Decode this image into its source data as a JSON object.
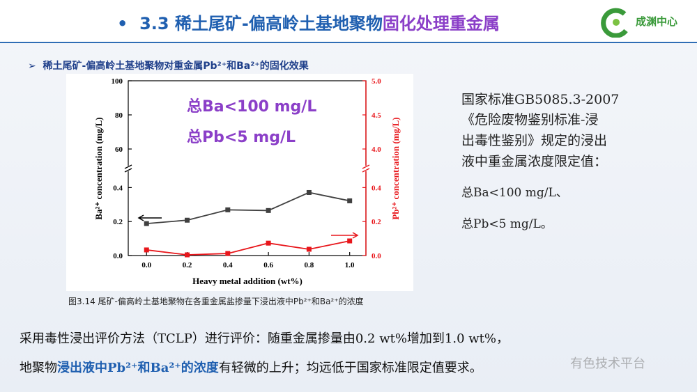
{
  "slide": {
    "title_parts": [
      "3.3  稀土尾矿-偏高岭土基地聚物",
      "固化处理重金属"
    ],
    "logo": "成渊中心",
    "subheading": "稀土尾矿-偏高岭土基地聚物对重金属Pb²⁺和Ba²⁺的固化效果",
    "caption": "图3.14  尾矿-偏高岭土基地聚物在各重金属盐掺量下浸出液中Pb²⁺和Ba²⁺的浓度",
    "standard_lines": [
      "国家标准GB5085.3-2007",
      "《危险废物鉴别标准-浸",
      "出毒性鉴别》规定的浸出",
      "液中重金属浓度限定值：",
      "总Ba<100 mg/L、",
      "总Pb<5 mg/L。"
    ],
    "bottom_line1": "采用毒性浸出评价方法（TCLP）进行评价：随重金属掺量由0.2 wt%增加到1.0 wt%，",
    "bottom_line2_parts": [
      "地聚物",
      "浸出液中Pb²⁺和Ba²⁺的浓度",
      "有轻微的上升；均远低于国家标准限定值要求。"
    ],
    "watermark": "有色技术平台"
  },
  "chart_data": {
    "type": "line",
    "xlabel": "Heavy metal addition (wt%)",
    "ylabel": "Ba²⁺ concentration (mg/L)",
    "y2label": "Pb²⁺ concentration (mg/L)",
    "annotations": [
      "总Ba<100 mg/L",
      "总Pb<5 mg/L"
    ],
    "x": [
      0,
      0.2,
      0.4,
      0.6,
      0.8,
      1.0
    ],
    "xlim": [
      -0.09,
      1.08
    ],
    "xticks": [
      {
        "value": 0,
        "label": "0.0"
      },
      0.2,
      0.4,
      0.6,
      0.8,
      {
        "value": 1.0,
        "label": "1.0"
      }
    ],
    "ylim": [
      0,
      0.5
    ],
    "yticks": [
      {
        "value": 0,
        "label": "0.0"
      },
      0.2,
      0.4
    ],
    "ylim_upper": [
      50,
      100
    ],
    "yticks_upper": [
      60,
      80,
      100
    ],
    "y2lim": [
      0,
      0.5
    ],
    "y2ticks": [
      {
        "value": 0,
        "label": "0.0"
      },
      0.2,
      0.4
    ],
    "y2lim_upper": [
      3.75,
      5
    ],
    "y2ticks_upper": [
      {
        "value": 4,
        "label": "4.0"
      },
      4.5,
      {
        "value": 5,
        "label": "5.0"
      }
    ],
    "series": [
      {
        "name": "Ba²⁺",
        "color": "#404040",
        "values": [
          0.188,
          0.208,
          0.269,
          0.265,
          0.371,
          0.322
        ]
      },
      {
        "name": "Pb²⁺",
        "color": "#e8161b",
        "axis": "y2",
        "values": [
          0.033,
          0.004,
          0.012,
          0.073,
          0.037,
          0.086
        ]
      }
    ]
  }
}
